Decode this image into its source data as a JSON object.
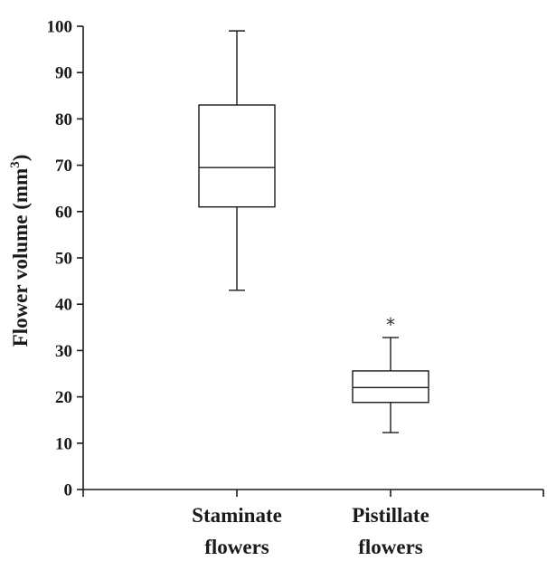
{
  "chart_data": {
    "type": "box",
    "ylabel": "Flower volume (mm",
    "ylabel_sup": "3",
    "ylabel_close": ")",
    "ylim": [
      0,
      100
    ],
    "yticks": [
      "0",
      "10",
      "20",
      "30",
      "40",
      "50",
      "60",
      "70",
      "80",
      "90",
      "100"
    ],
    "grid": false,
    "categories": [
      {
        "line1": "Staminate",
        "line2": "flowers"
      },
      {
        "line1": "Pistillate",
        "line2": "flowers"
      }
    ],
    "boxes": [
      {
        "min": 43,
        "q1": 61,
        "median": 69.5,
        "q3": 83,
        "max": 99,
        "outliers": []
      },
      {
        "min": 12.3,
        "q1": 18.8,
        "median": 22,
        "q3": 25.6,
        "max": 32.8,
        "outliers": [
          36.5
        ]
      }
    ],
    "outlier_marker": "*"
  }
}
